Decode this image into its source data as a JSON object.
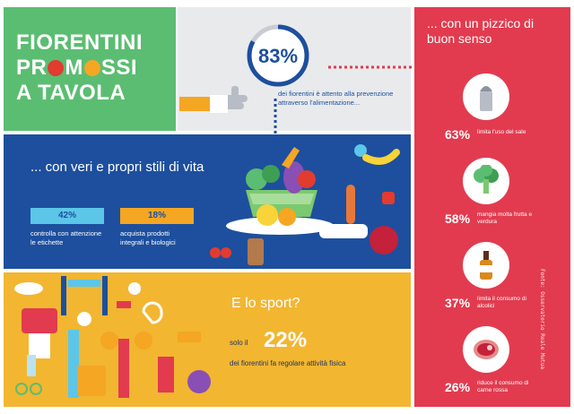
{
  "title": {
    "line1": "FIORENTINI",
    "line2_start": "PR",
    "line2_middle": "M",
    "line2_end": "SSI",
    "line3": "A TAVOLA"
  },
  "stat": {
    "percent": "83%",
    "caption": "dei fiorentini è attento alla prevenzione attraverso l'alimentazione..."
  },
  "lifestyle": {
    "title": "... con veri e propri stili di vita",
    "items": [
      {
        "percent": "42%",
        "text": "controlla con attenzione le etichette"
      },
      {
        "percent": "18%",
        "text": "acquista prodotti integrali e biologici"
      }
    ]
  },
  "sport": {
    "title": "E lo sport?",
    "solo": "solo il",
    "percent": "22%",
    "desc": "dei fiorentini fa regolare attività fisica"
  },
  "sense": {
    "title": "... con un pizzico di buon senso",
    "items": [
      {
        "percent": "63%",
        "label": "limita l'uso del sale",
        "icon": "salt-shaker-icon"
      },
      {
        "percent": "58%",
        "label": "mangia molta frutta e verdura",
        "icon": "broccoli-icon"
      },
      {
        "percent": "37%",
        "label": "limita il consumo di alcolici",
        "icon": "bottle-icon"
      },
      {
        "percent": "26%",
        "label": "riduce il consumo di carne rossa",
        "icon": "steak-icon"
      }
    ],
    "source": "Fonte: Osservatorio Reale Mutua"
  },
  "colors": {
    "green": "#5bbd72",
    "blue": "#1d4f9e",
    "yellow": "#f2b631",
    "red": "#e23b4f",
    "grey": "#e9eaec",
    "orange": "#f5a623",
    "cyan": "#5cc6e8"
  }
}
